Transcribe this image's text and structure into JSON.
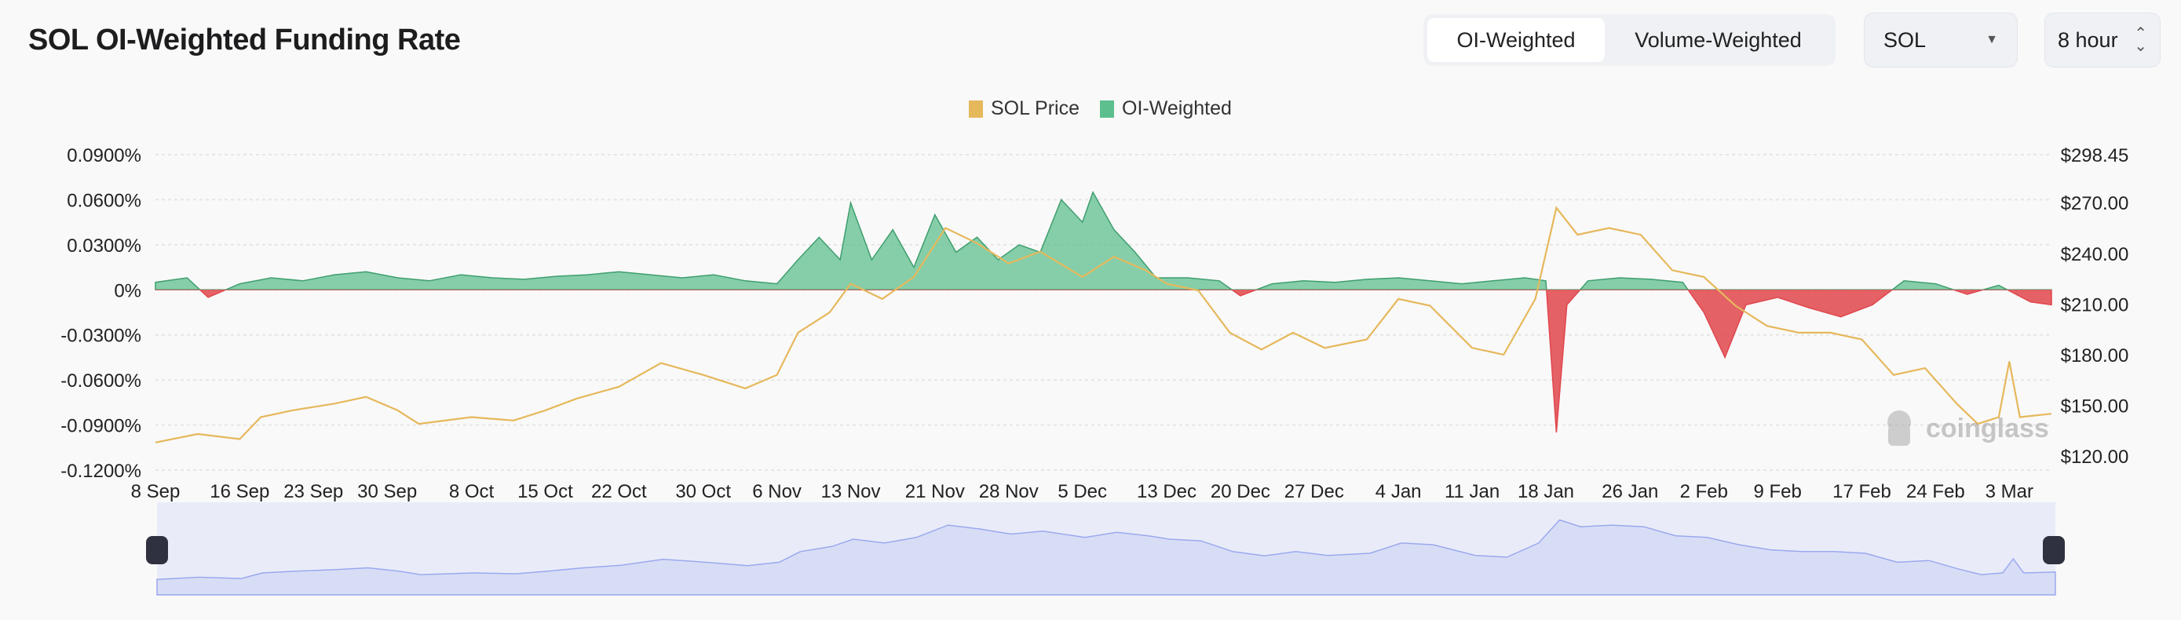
{
  "header": {
    "title": "SOL OI-Weighted Funding Rate"
  },
  "controls": {
    "weighting_options": [
      "OI-Weighted",
      "Volume-Weighted"
    ],
    "weighting_selected": "OI-Weighted",
    "symbol": "SOL",
    "interval": "8 hour"
  },
  "watermark": "coinglass",
  "colors": {
    "price": "#e6b85c",
    "positive": "#5dbf8e",
    "negative": "#e0474c",
    "navigator": "#9aa9ee"
  },
  "chart_data": {
    "type": "line",
    "title": "",
    "legend": {
      "placement": "top-center",
      "entries": [
        "SOL Price",
        "OI-Weighted"
      ]
    },
    "grid": true,
    "x_tick_labels": [
      "8 Sep",
      "16 Sep",
      "23 Sep",
      "30 Sep",
      "8 Oct",
      "15 Oct",
      "22 Oct",
      "30 Oct",
      "6 Nov",
      "13 Nov",
      "21 Nov",
      "28 Nov",
      "5 Dec",
      "13 Dec",
      "20 Dec",
      "27 Dec",
      "4 Jan",
      "11 Jan",
      "18 Jan",
      "26 Jan",
      "2 Feb",
      "9 Feb",
      "17 Feb",
      "24 Feb",
      "3 Mar"
    ],
    "x_tick_dates": [
      "2024-09-08",
      "2024-09-16",
      "2024-09-23",
      "2024-09-30",
      "2024-10-08",
      "2024-10-15",
      "2024-10-22",
      "2024-10-30",
      "2024-11-06",
      "2024-11-13",
      "2024-11-21",
      "2024-11-28",
      "2024-12-05",
      "2024-12-13",
      "2024-12-20",
      "2024-12-27",
      "2025-01-04",
      "2025-01-11",
      "2025-01-18",
      "2025-01-26",
      "2025-02-02",
      "2025-02-09",
      "2025-02-17",
      "2025-02-24",
      "2025-03-03"
    ],
    "x_range": [
      "2024-09-08",
      "2025-03-07"
    ],
    "y_left": {
      "ticks": [
        "0.0900%",
        "0.0600%",
        "0.0300%",
        "0%",
        "-0.0300%",
        "-0.0600%",
        "-0.0900%",
        "-0.1200%"
      ],
      "values": [
        0.09,
        0.06,
        0.03,
        0,
        -0.03,
        -0.06,
        -0.09,
        -0.12
      ],
      "range": [
        -0.12,
        0.09
      ],
      "unit": "%"
    },
    "y_right": {
      "ticks": [
        "$298.45",
        "$270.00",
        "$240.00",
        "$210.00",
        "$180.00",
        "$150.00",
        "$120.00"
      ],
      "values": [
        298.45,
        270,
        240,
        210,
        180,
        150,
        120
      ],
      "range": [
        120,
        298.45
      ]
    },
    "series": [
      {
        "name": "SOL Price",
        "axis": "right",
        "points": [
          [
            "2024-09-08",
            128
          ],
          [
            "2024-09-12",
            133
          ],
          [
            "2024-09-16",
            130
          ],
          [
            "2024-09-18",
            143
          ],
          [
            "2024-09-21",
            147
          ],
          [
            "2024-09-25",
            151
          ],
          [
            "2024-09-28",
            155
          ],
          [
            "2024-10-01",
            147
          ],
          [
            "2024-10-03",
            139
          ],
          [
            "2024-10-08",
            143
          ],
          [
            "2024-10-12",
            141
          ],
          [
            "2024-10-15",
            147
          ],
          [
            "2024-10-18",
            154
          ],
          [
            "2024-10-22",
            161
          ],
          [
            "2024-10-26",
            175
          ],
          [
            "2024-10-30",
            168
          ],
          [
            "2024-11-03",
            160
          ],
          [
            "2024-11-06",
            168
          ],
          [
            "2024-11-08",
            193
          ],
          [
            "2024-11-11",
            205
          ],
          [
            "2024-11-13",
            222
          ],
          [
            "2024-11-16",
            213
          ],
          [
            "2024-11-19",
            226
          ],
          [
            "2024-11-22",
            255
          ],
          [
            "2024-11-25",
            246
          ],
          [
            "2024-11-28",
            234
          ],
          [
            "2024-12-01",
            241
          ],
          [
            "2024-12-05",
            226
          ],
          [
            "2024-12-08",
            238
          ],
          [
            "2024-12-11",
            230
          ],
          [
            "2024-12-13",
            222
          ],
          [
            "2024-12-16",
            218
          ],
          [
            "2024-12-19",
            193
          ],
          [
            "2024-12-22",
            183
          ],
          [
            "2024-12-25",
            193
          ],
          [
            "2024-12-28",
            184
          ],
          [
            "2025-01-01",
            189
          ],
          [
            "2025-01-04",
            213
          ],
          [
            "2025-01-07",
            209
          ],
          [
            "2025-01-11",
            184
          ],
          [
            "2025-01-14",
            180
          ],
          [
            "2025-01-17",
            213
          ],
          [
            "2025-01-19",
            267
          ],
          [
            "2025-01-21",
            251
          ],
          [
            "2025-01-24",
            255
          ],
          [
            "2025-01-27",
            251
          ],
          [
            "2025-01-30",
            230
          ],
          [
            "2025-02-02",
            226
          ],
          [
            "2025-02-05",
            209
          ],
          [
            "2025-02-08",
            197
          ],
          [
            "2025-02-11",
            193
          ],
          [
            "2025-02-14",
            193
          ],
          [
            "2025-02-17",
            189
          ],
          [
            "2025-02-20",
            168
          ],
          [
            "2025-02-23",
            172
          ],
          [
            "2025-02-26",
            151
          ],
          [
            "2025-02-28",
            139
          ],
          [
            "2025-03-02",
            143
          ],
          [
            "2025-03-03",
            176
          ],
          [
            "2025-03-04",
            143
          ],
          [
            "2025-03-07",
            145
          ]
        ]
      },
      {
        "name": "OI-Weighted",
        "axis": "left",
        "points": [
          [
            "2024-09-08",
            0.005
          ],
          [
            "2024-09-11",
            0.008
          ],
          [
            "2024-09-13",
            -0.005
          ],
          [
            "2024-09-16",
            0.004
          ],
          [
            "2024-09-19",
            0.008
          ],
          [
            "2024-09-22",
            0.006
          ],
          [
            "2024-09-25",
            0.01
          ],
          [
            "2024-09-28",
            0.012
          ],
          [
            "2024-10-01",
            0.008
          ],
          [
            "2024-10-04",
            0.006
          ],
          [
            "2024-10-07",
            0.01
          ],
          [
            "2024-10-10",
            0.008
          ],
          [
            "2024-10-13",
            0.007
          ],
          [
            "2024-10-16",
            0.009
          ],
          [
            "2024-10-19",
            0.01
          ],
          [
            "2024-10-22",
            0.012
          ],
          [
            "2024-10-25",
            0.01
          ],
          [
            "2024-10-28",
            0.008
          ],
          [
            "2024-10-31",
            0.01
          ],
          [
            "2024-11-03",
            0.006
          ],
          [
            "2024-11-06",
            0.004
          ],
          [
            "2024-11-08",
            0.02
          ],
          [
            "2024-11-10",
            0.035
          ],
          [
            "2024-11-12",
            0.02
          ],
          [
            "2024-11-13",
            0.058
          ],
          [
            "2024-11-15",
            0.02
          ],
          [
            "2024-11-17",
            0.04
          ],
          [
            "2024-11-19",
            0.015
          ],
          [
            "2024-11-21",
            0.05
          ],
          [
            "2024-11-23",
            0.025
          ],
          [
            "2024-11-25",
            0.035
          ],
          [
            "2024-11-27",
            0.02
          ],
          [
            "2024-11-29",
            0.03
          ],
          [
            "2024-12-01",
            0.025
          ],
          [
            "2024-12-03",
            0.06
          ],
          [
            "2024-12-05",
            0.045
          ],
          [
            "2024-12-06",
            0.065
          ],
          [
            "2024-12-08",
            0.04
          ],
          [
            "2024-12-10",
            0.025
          ],
          [
            "2024-12-12",
            0.008
          ],
          [
            "2024-12-15",
            0.008
          ],
          [
            "2024-12-18",
            0.006
          ],
          [
            "2024-12-20",
            -0.004
          ],
          [
            "2024-12-23",
            0.004
          ],
          [
            "2024-12-26",
            0.006
          ],
          [
            "2024-12-29",
            0.005
          ],
          [
            "2025-01-01",
            0.007
          ],
          [
            "2025-01-04",
            0.008
          ],
          [
            "2025-01-07",
            0.006
          ],
          [
            "2025-01-10",
            0.004
          ],
          [
            "2025-01-13",
            0.006
          ],
          [
            "2025-01-16",
            0.008
          ],
          [
            "2025-01-18",
            0.006
          ],
          [
            "2025-01-19",
            -0.095
          ],
          [
            "2025-01-20",
            -0.01
          ],
          [
            "2025-01-22",
            0.006
          ],
          [
            "2025-01-25",
            0.008
          ],
          [
            "2025-01-28",
            0.007
          ],
          [
            "2025-01-31",
            0.005
          ],
          [
            "2025-02-02",
            -0.015
          ],
          [
            "2025-02-04",
            -0.045
          ],
          [
            "2025-02-06",
            -0.01
          ],
          [
            "2025-02-09",
            -0.005
          ],
          [
            "2025-02-12",
            -0.012
          ],
          [
            "2025-02-15",
            -0.018
          ],
          [
            "2025-02-18",
            -0.01
          ],
          [
            "2025-02-21",
            0.006
          ],
          [
            "2025-02-24",
            0.004
          ],
          [
            "2025-02-27",
            -0.003
          ],
          [
            "2025-03-02",
            0.003
          ],
          [
            "2025-03-05",
            -0.008
          ],
          [
            "2025-03-07",
            -0.01
          ]
        ]
      }
    ]
  }
}
